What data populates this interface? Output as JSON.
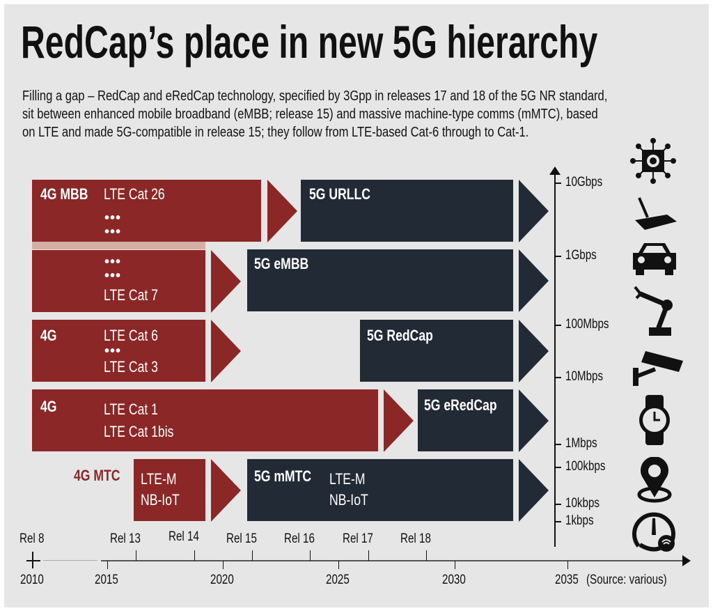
{
  "title": "RedCap’s place in new 5G hierarchy",
  "subtitle": [
    "Filling a gap – RedCap and eRedCap technology, specified by 3Gpp in releases 17 and 18 of the 5G NR standard,",
    "sit between enhanced mobile broadband (eMBB; release 15) and massive machine-type comms (mMTC), based",
    "on LTE and made 5G-compatible in release 15; they follow from LTE-based Cat-6 through to Cat-1."
  ],
  "colors": {
    "lte": "#8b2727",
    "nr": "#222a36",
    "background": "#e6e6e6",
    "strip": "#d3b0a3"
  },
  "rows": [
    {
      "group": "4G MBB",
      "lines": [
        "LTE Cat 26",
        "•••",
        "•••"
      ],
      "target": "5G URLLC"
    },
    {
      "group": "",
      "lines": [
        "•••",
        "•••",
        "LTE Cat 7"
      ],
      "target": "5G eMBB"
    },
    {
      "group": "4G",
      "lines": [
        "LTE Cat 6",
        "•••",
        "LTE Cat 3"
      ],
      "target": "5G RedCap"
    },
    {
      "group": "4G",
      "lines": [
        "LTE Cat 1",
        "LTE Cat 1bis"
      ],
      "target": "5G eRedCap"
    },
    {
      "group": "4G MTC",
      "lines": [
        "LTE-M",
        "NB-IoT"
      ],
      "target": "5G mMTC",
      "target_lines": [
        "LTE-M",
        "NB-IoT"
      ]
    }
  ],
  "speed_axis": [
    "10Gbps",
    "1Gbps",
    "100Mbps",
    "10Mbps",
    "1Mbps",
    "100kbps",
    "10kbps",
    "1kbps"
  ],
  "icons": [
    "processor-chip-icon",
    "router-icon",
    "car-icon",
    "robot-arm-icon",
    "cctv-camera-icon",
    "smartwatch-icon",
    "location-pin-icon",
    "meter-icon"
  ],
  "releases": [
    "Rel 8",
    "Rel 13",
    "Rel 14",
    "Rel 15",
    "Rel 16",
    "Rel 17",
    "Rel 18"
  ],
  "years": [
    "2010",
    "2015",
    "2020",
    "2025",
    "2030",
    "2035"
  ],
  "source": "(Source: various)"
}
